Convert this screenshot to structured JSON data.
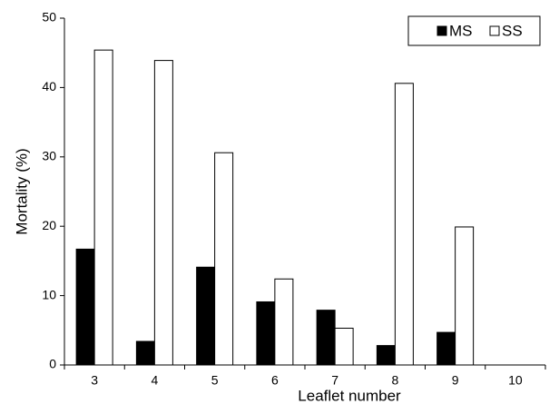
{
  "chart_data": {
    "type": "bar",
    "x_label": "Leaflet number",
    "y_label": "Mortality (%)",
    "categories": [
      "3",
      "4",
      "5",
      "6",
      "7",
      "8",
      "9",
      "10"
    ],
    "series": [
      {
        "name": "MS",
        "color": "#000000",
        "values": [
          16.7,
          3.4,
          14.1,
          9.1,
          7.9,
          2.8,
          4.7,
          0
        ]
      },
      {
        "name": "SS",
        "color": "#ffffff",
        "values": [
          45.4,
          43.9,
          30.6,
          12.4,
          5.3,
          40.6,
          19.9,
          0
        ]
      }
    ],
    "ylim": [
      0,
      50
    ],
    "yticks": [
      0,
      10,
      20,
      30,
      40,
      50
    ],
    "grid": false,
    "legend": "upper right"
  }
}
